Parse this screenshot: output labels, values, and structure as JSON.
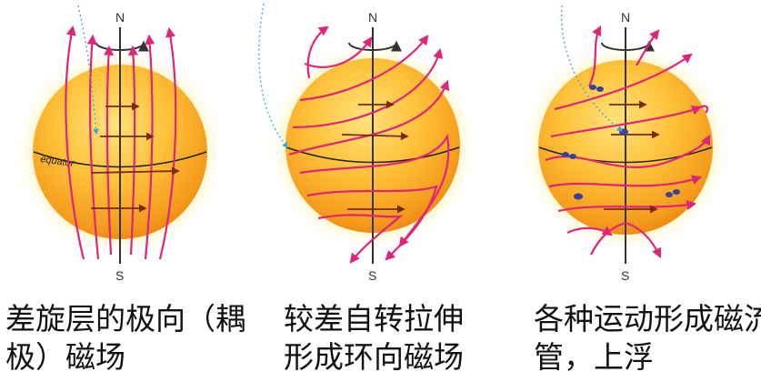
{
  "panels": [
    {
      "north_label": "N",
      "south_label": "S",
      "equator_label": "equator",
      "caption_lines": [
        "差旋层的极向（耦",
        "极）磁场"
      ]
    },
    {
      "north_label": "N",
      "south_label": "S",
      "caption_lines": [
        "较差自转拉伸",
        "形成环向磁场"
      ]
    },
    {
      "north_label": "N",
      "south_label": "S",
      "caption_lines": [
        "各种运动形成磁流",
        "管，上浮"
      ]
    }
  ],
  "colors": {
    "sun_core": "#ffd24a",
    "sun_edge": "#f28a10",
    "glow": "#ffe680",
    "field_line": "#e0247a",
    "flow_arrow": "#7a2a10",
    "axis": "#333333",
    "dotted_path": "#3aa3d8",
    "flux_tube_dot": "#3b3fa0"
  }
}
